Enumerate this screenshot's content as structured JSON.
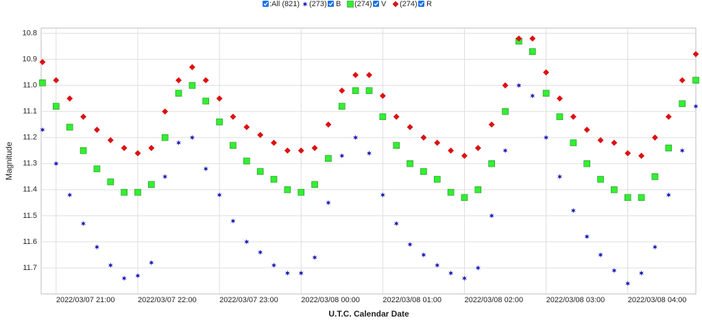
{
  "chart_data": {
    "type": "scatter",
    "legend_all": ":All (821)",
    "xlabel": "U.T.C. Calendar Date",
    "ylabel": "Magnitude",
    "y_inverted": true,
    "grid": true,
    "legend": "top",
    "xlim": [
      "2022/03/07 20:49",
      "2022/03/08 04:50"
    ],
    "xticks": [
      "2022/03/07 21:00",
      "2022/03/07 22:00",
      "2022/03/07 23:00",
      "2022/03/08 00:00",
      "2022/03/08 01:00",
      "2022/03/08 02:00",
      "2022/03/08 03:00",
      "2022/03/08 04:00"
    ],
    "ylim": [
      11.8,
      10.78
    ],
    "yticks": [
      10.8,
      10.9,
      {
        "value": 11,
        "label": "11.0"
      },
      11.1,
      11.2,
      11.3,
      11.4,
      11.5,
      11.6,
      11.7
    ],
    "x": [
      "2022/03/07 20:50",
      "2022/03/07 21:00",
      "2022/03/07 21:10",
      "2022/03/07 21:20",
      "2022/03/07 21:30",
      "2022/03/07 21:40",
      "2022/03/07 21:50",
      "2022/03/07 22:00",
      "2022/03/07 22:10",
      "2022/03/07 22:20",
      "2022/03/07 22:30",
      "2022/03/07 22:40",
      "2022/03/07 22:50",
      "2022/03/07 23:00",
      "2022/03/07 23:10",
      "2022/03/07 23:20",
      "2022/03/07 23:30",
      "2022/03/07 23:40",
      "2022/03/07 23:50",
      "2022/03/08 00:00",
      "2022/03/08 00:10",
      "2022/03/08 00:20",
      "2022/03/08 00:30",
      "2022/03/08 00:40",
      "2022/03/08 00:50",
      "2022/03/08 01:00",
      "2022/03/08 01:10",
      "2022/03/08 01:20",
      "2022/03/08 01:30",
      "2022/03/08 01:40",
      "2022/03/08 01:50",
      "2022/03/08 02:00",
      "2022/03/08 02:10",
      "2022/03/08 02:20",
      "2022/03/08 02:30",
      "2022/03/08 02:40",
      "2022/03/08 02:50",
      "2022/03/08 03:00",
      "2022/03/08 03:10",
      "2022/03/08 03:20",
      "2022/03/08 03:30",
      "2022/03/08 03:40",
      "2022/03/08 03:50",
      "2022/03/08 04:00",
      "2022/03/08 04:10",
      "2022/03/08 04:20",
      "2022/03/08 04:30",
      "2022/03/08 04:40",
      "2022/03/08 04:50"
    ],
    "series": [
      {
        "name": "B",
        "count_label": "(273)",
        "color": "#1c1cb8",
        "marker": "star",
        "values": [
          11.17,
          11.3,
          11.42,
          11.53,
          11.62,
          11.69,
          11.74,
          11.73,
          11.68,
          11.35,
          11.22,
          11.2,
          11.32,
          11.42,
          11.52,
          11.6,
          11.64,
          11.69,
          11.72,
          11.72,
          11.66,
          11.45,
          11.27,
          11.2,
          11.26,
          11.42,
          11.53,
          11.61,
          11.65,
          11.69,
          11.72,
          11.74,
          11.7,
          11.5,
          11.25,
          11.0,
          11.04,
          11.2,
          11.35,
          11.48,
          11.58,
          11.65,
          11.71,
          11.76,
          11.72,
          11.62,
          11.42,
          11.25,
          11.08
        ]
      },
      {
        "name": "V",
        "count_label": "(274)",
        "color": "#33ee33",
        "marker": "square",
        "values": [
          10.99,
          11.08,
          11.16,
          11.25,
          11.32,
          11.37,
          11.41,
          11.41,
          11.38,
          11.2,
          11.03,
          11.0,
          11.06,
          11.14,
          11.23,
          11.29,
          11.33,
          11.36,
          11.4,
          11.41,
          11.38,
          11.28,
          11.08,
          11.02,
          11.02,
          11.12,
          11.23,
          11.3,
          11.33,
          11.36,
          11.41,
          11.43,
          11.4,
          11.3,
          11.1,
          10.83,
          10.87,
          11.03,
          11.12,
          11.22,
          11.3,
          11.36,
          11.4,
          11.43,
          11.43,
          11.35,
          11.24,
          11.07,
          10.98
        ]
      },
      {
        "name": "R",
        "count_label": "(274)",
        "color": "#dd1111",
        "marker": "diamond",
        "values": [
          10.91,
          10.98,
          11.05,
          11.12,
          11.17,
          11.21,
          11.24,
          11.26,
          11.24,
          11.1,
          10.98,
          10.93,
          10.98,
          11.05,
          11.12,
          11.16,
          11.19,
          11.22,
          11.25,
          11.25,
          11.24,
          11.15,
          11.02,
          10.96,
          10.96,
          11.04,
          11.12,
          11.16,
          11.2,
          11.22,
          11.25,
          11.27,
          11.24,
          11.15,
          11.0,
          10.82,
          10.82,
          10.95,
          11.05,
          11.12,
          11.17,
          11.21,
          11.22,
          11.26,
          11.27,
          11.2,
          11.12,
          10.98,
          10.88
        ]
      }
    ]
  }
}
